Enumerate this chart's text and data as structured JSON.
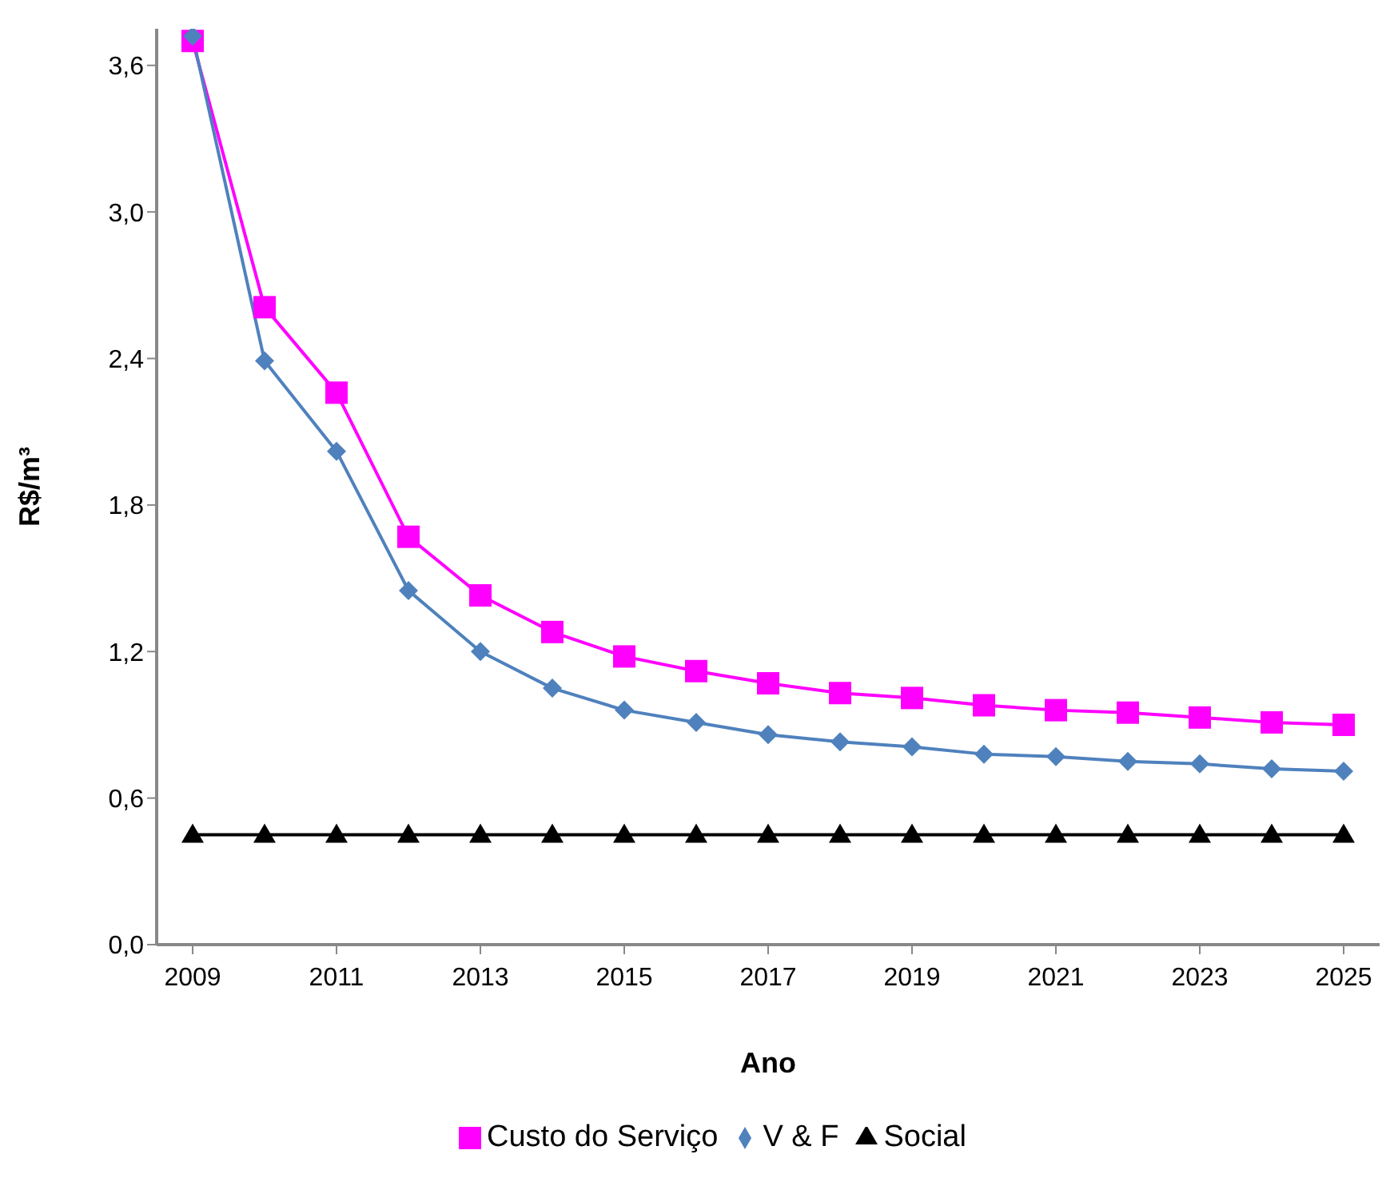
{
  "chart_data": {
    "type": "line",
    "xlabel": "Ano",
    "ylabel": "R$/m³",
    "x": [
      2009,
      2010,
      2011,
      2012,
      2013,
      2014,
      2015,
      2016,
      2017,
      2018,
      2019,
      2020,
      2021,
      2022,
      2023,
      2024,
      2025
    ],
    "xlim": [
      2008.5,
      2025.5
    ],
    "xticks": [
      2009,
      2011,
      2013,
      2015,
      2017,
      2019,
      2021,
      2023,
      2025
    ],
    "ylim": [
      0,
      3.75
    ],
    "yticks": [
      {
        "value": 0,
        "label": "0,0"
      },
      {
        "value": 0.6,
        "label": "0,6"
      },
      {
        "value": 1.2,
        "label": "1,2"
      },
      {
        "value": 1.8,
        "label": "1,8"
      },
      {
        "value": 2.4,
        "label": "2,4"
      },
      {
        "value": 3.0,
        "label": "3,0"
      },
      {
        "value": 3.6,
        "label": "3,6"
      }
    ],
    "series": [
      {
        "name": "Custo do Serviço",
        "color": "#ff00ff",
        "marker": "square",
        "values": [
          3.7,
          2.61,
          2.26,
          1.67,
          1.43,
          1.28,
          1.18,
          1.12,
          1.07,
          1.03,
          1.01,
          0.98,
          0.96,
          0.95,
          0.93,
          0.91,
          0.9
        ]
      },
      {
        "name": "V & F",
        "color": "#4f81bd",
        "marker": "diamond",
        "values": [
          3.72,
          2.39,
          2.02,
          1.45,
          1.2,
          1.05,
          0.96,
          0.91,
          0.86,
          0.83,
          0.81,
          0.78,
          0.77,
          0.75,
          0.74,
          0.72,
          0.71
        ]
      },
      {
        "name": "Social",
        "color": "#000000",
        "marker": "triangle",
        "values": [
          0.45,
          0.45,
          0.45,
          0.45,
          0.45,
          0.45,
          0.45,
          0.45,
          0.45,
          0.45,
          0.45,
          0.45,
          0.45,
          0.45,
          0.45,
          0.45,
          0.45
        ]
      }
    ],
    "grid": false,
    "legend": "bottom"
  }
}
